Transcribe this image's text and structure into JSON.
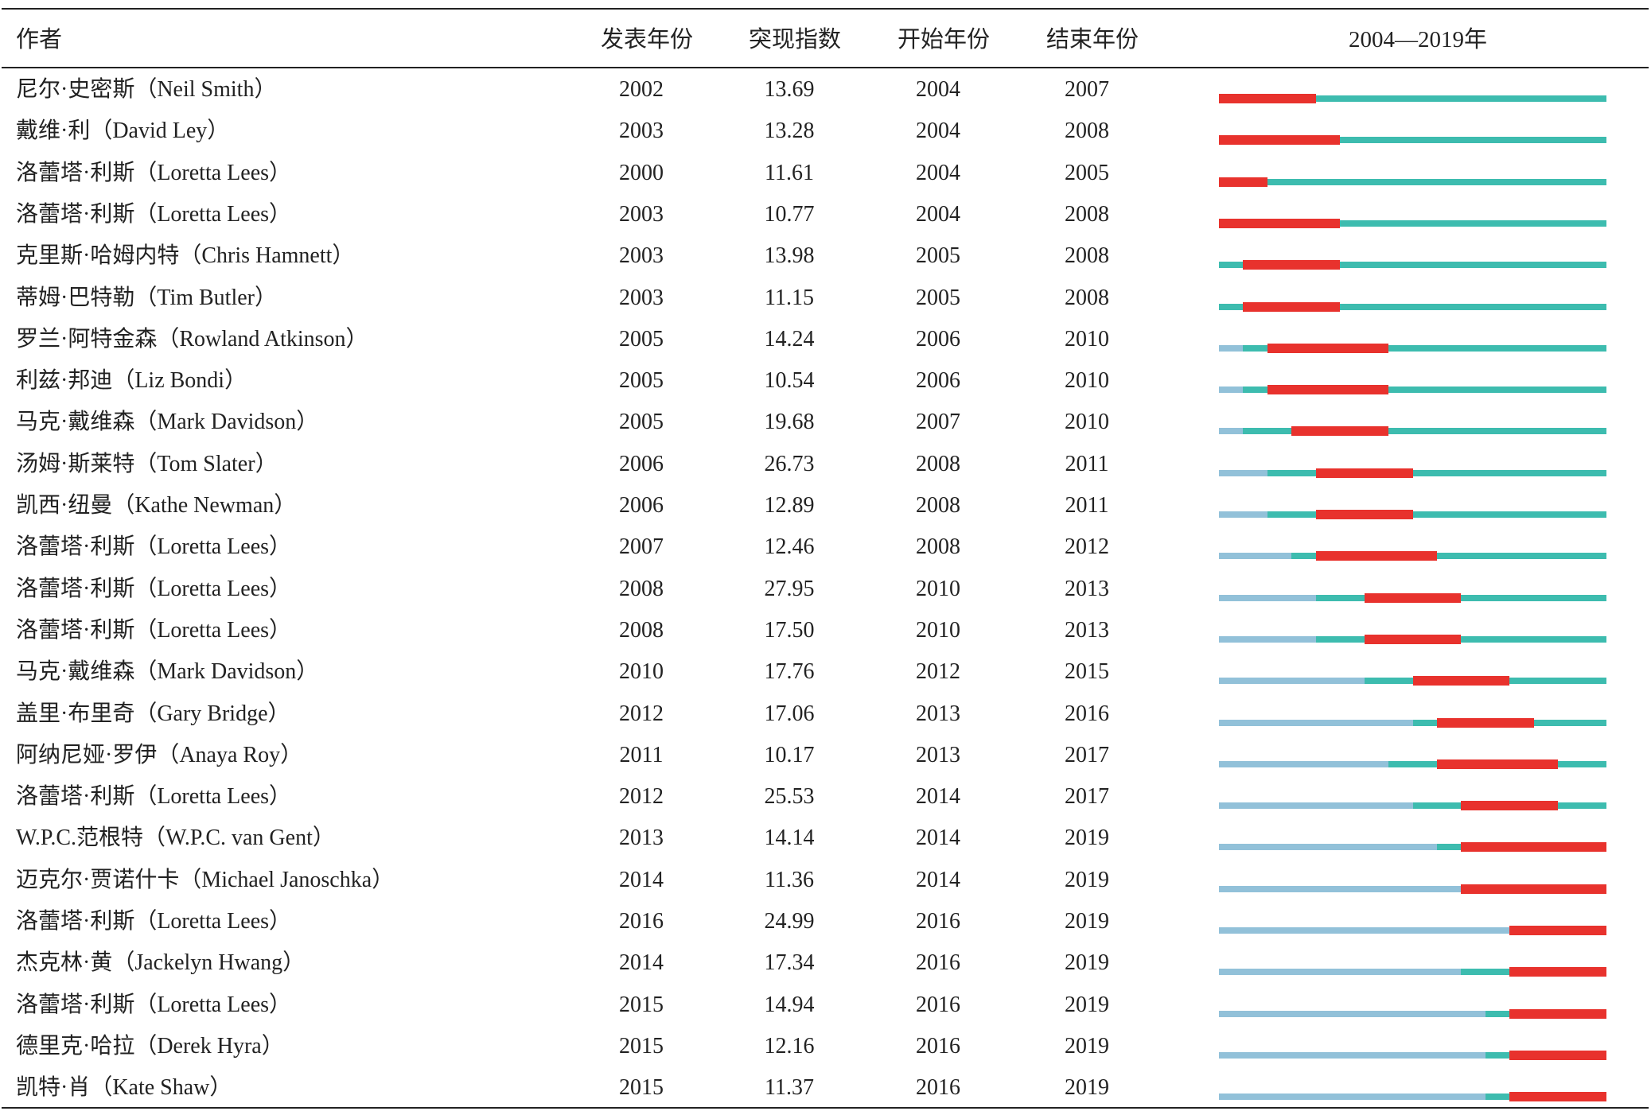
{
  "chart_data": {
    "type": "table",
    "columns": [
      "作者",
      "发表年份",
      "突现指数",
      "开始年份",
      "结束年份",
      "2004—2019年"
    ],
    "timeline_range": [
      2004,
      2019
    ],
    "colors": {
      "pre_publication": "#92c1d9",
      "active": "#3dbcaf",
      "burst": "#e8322d"
    },
    "rows": [
      {
        "author": "尼尔·史密斯（Neil Smith）",
        "year": "2002",
        "strength": "13.69",
        "begin": "2004",
        "end": "2007"
      },
      {
        "author": "戴维·利（David Ley）",
        "year": "2003",
        "strength": "13.28",
        "begin": "2004",
        "end": "2008"
      },
      {
        "author": "洛蕾塔·利斯（Loretta Lees）",
        "year": "2000",
        "strength": "11.61",
        "begin": "2004",
        "end": "2005"
      },
      {
        "author": "洛蕾塔·利斯（Loretta Lees）",
        "year": "2003",
        "strength": "10.77",
        "begin": "2004",
        "end": "2008"
      },
      {
        "author": "克里斯·哈姆内特（Chris Hamnett）",
        "year": "2003",
        "strength": "13.98",
        "begin": "2005",
        "end": "2008"
      },
      {
        "author": "蒂姆·巴特勒（Tim Butler）",
        "year": "2003",
        "strength": "11.15",
        "begin": "2005",
        "end": "2008"
      },
      {
        "author": "罗兰·阿特金森（Rowland Atkinson）",
        "year": "2005",
        "strength": "14.24",
        "begin": "2006",
        "end": "2010"
      },
      {
        "author": "利兹·邦迪（Liz Bondi）",
        "year": "2005",
        "strength": "10.54",
        "begin": "2006",
        "end": "2010"
      },
      {
        "author": "马克·戴维森（Mark Davidson）",
        "year": "2005",
        "strength": "19.68",
        "begin": "2007",
        "end": "2010"
      },
      {
        "author": "汤姆·斯莱特（Tom Slater）",
        "year": "2006",
        "strength": "26.73",
        "begin": "2008",
        "end": "2011"
      },
      {
        "author": "凯西·纽曼（Kathe Newman）",
        "year": "2006",
        "strength": "12.89",
        "begin": "2008",
        "end": "2011"
      },
      {
        "author": "洛蕾塔·利斯（Loretta Lees）",
        "year": "2007",
        "strength": "12.46",
        "begin": "2008",
        "end": "2012"
      },
      {
        "author": "洛蕾塔·利斯（Loretta Lees）",
        "year": "2008",
        "strength": "27.95",
        "begin": "2010",
        "end": "2013"
      },
      {
        "author": "洛蕾塔·利斯（Loretta Lees）",
        "year": "2008",
        "strength": "17.50",
        "begin": "2010",
        "end": "2013"
      },
      {
        "author": "马克·戴维森（Mark Davidson）",
        "year": "2010",
        "strength": "17.76",
        "begin": "2012",
        "end": "2015"
      },
      {
        "author": "盖里·布里奇（Gary Bridge）",
        "year": "2012",
        "strength": "17.06",
        "begin": "2013",
        "end": "2016"
      },
      {
        "author": "阿纳尼娅·罗伊（Anaya Roy）",
        "year": "2011",
        "strength": "10.17",
        "begin": "2013",
        "end": "2017"
      },
      {
        "author": "洛蕾塔·利斯（Loretta Lees）",
        "year": "2012",
        "strength": "25.53",
        "begin": "2014",
        "end": "2017"
      },
      {
        "author": "W.P.C.范根特（W.P.C. van Gent）",
        "year": "2013",
        "strength": "14.14",
        "begin": "2014",
        "end": "2019"
      },
      {
        "author": "迈克尔·贾诺什卡（Michael Janoschka）",
        "year": "2014",
        "strength": "11.36",
        "begin": "2014",
        "end": "2019"
      },
      {
        "author": "洛蕾塔·利斯（Loretta Lees）",
        "year": "2016",
        "strength": "24.99",
        "begin": "2016",
        "end": "2019"
      },
      {
        "author": "杰克林·黄（Jackelyn Hwang）",
        "year": "2014",
        "strength": "17.34",
        "begin": "2016",
        "end": "2019"
      },
      {
        "author": "洛蕾塔·利斯（Loretta Lees）",
        "year": "2015",
        "strength": "14.94",
        "begin": "2016",
        "end": "2019"
      },
      {
        "author": "德里克·哈拉（Derek Hyra）",
        "year": "2015",
        "strength": "12.16",
        "begin": "2016",
        "end": "2019"
      },
      {
        "author": "凯特·肖（Kate Shaw）",
        "year": "2015",
        "strength": "11.37",
        "begin": "2016",
        "end": "2019"
      }
    ]
  }
}
